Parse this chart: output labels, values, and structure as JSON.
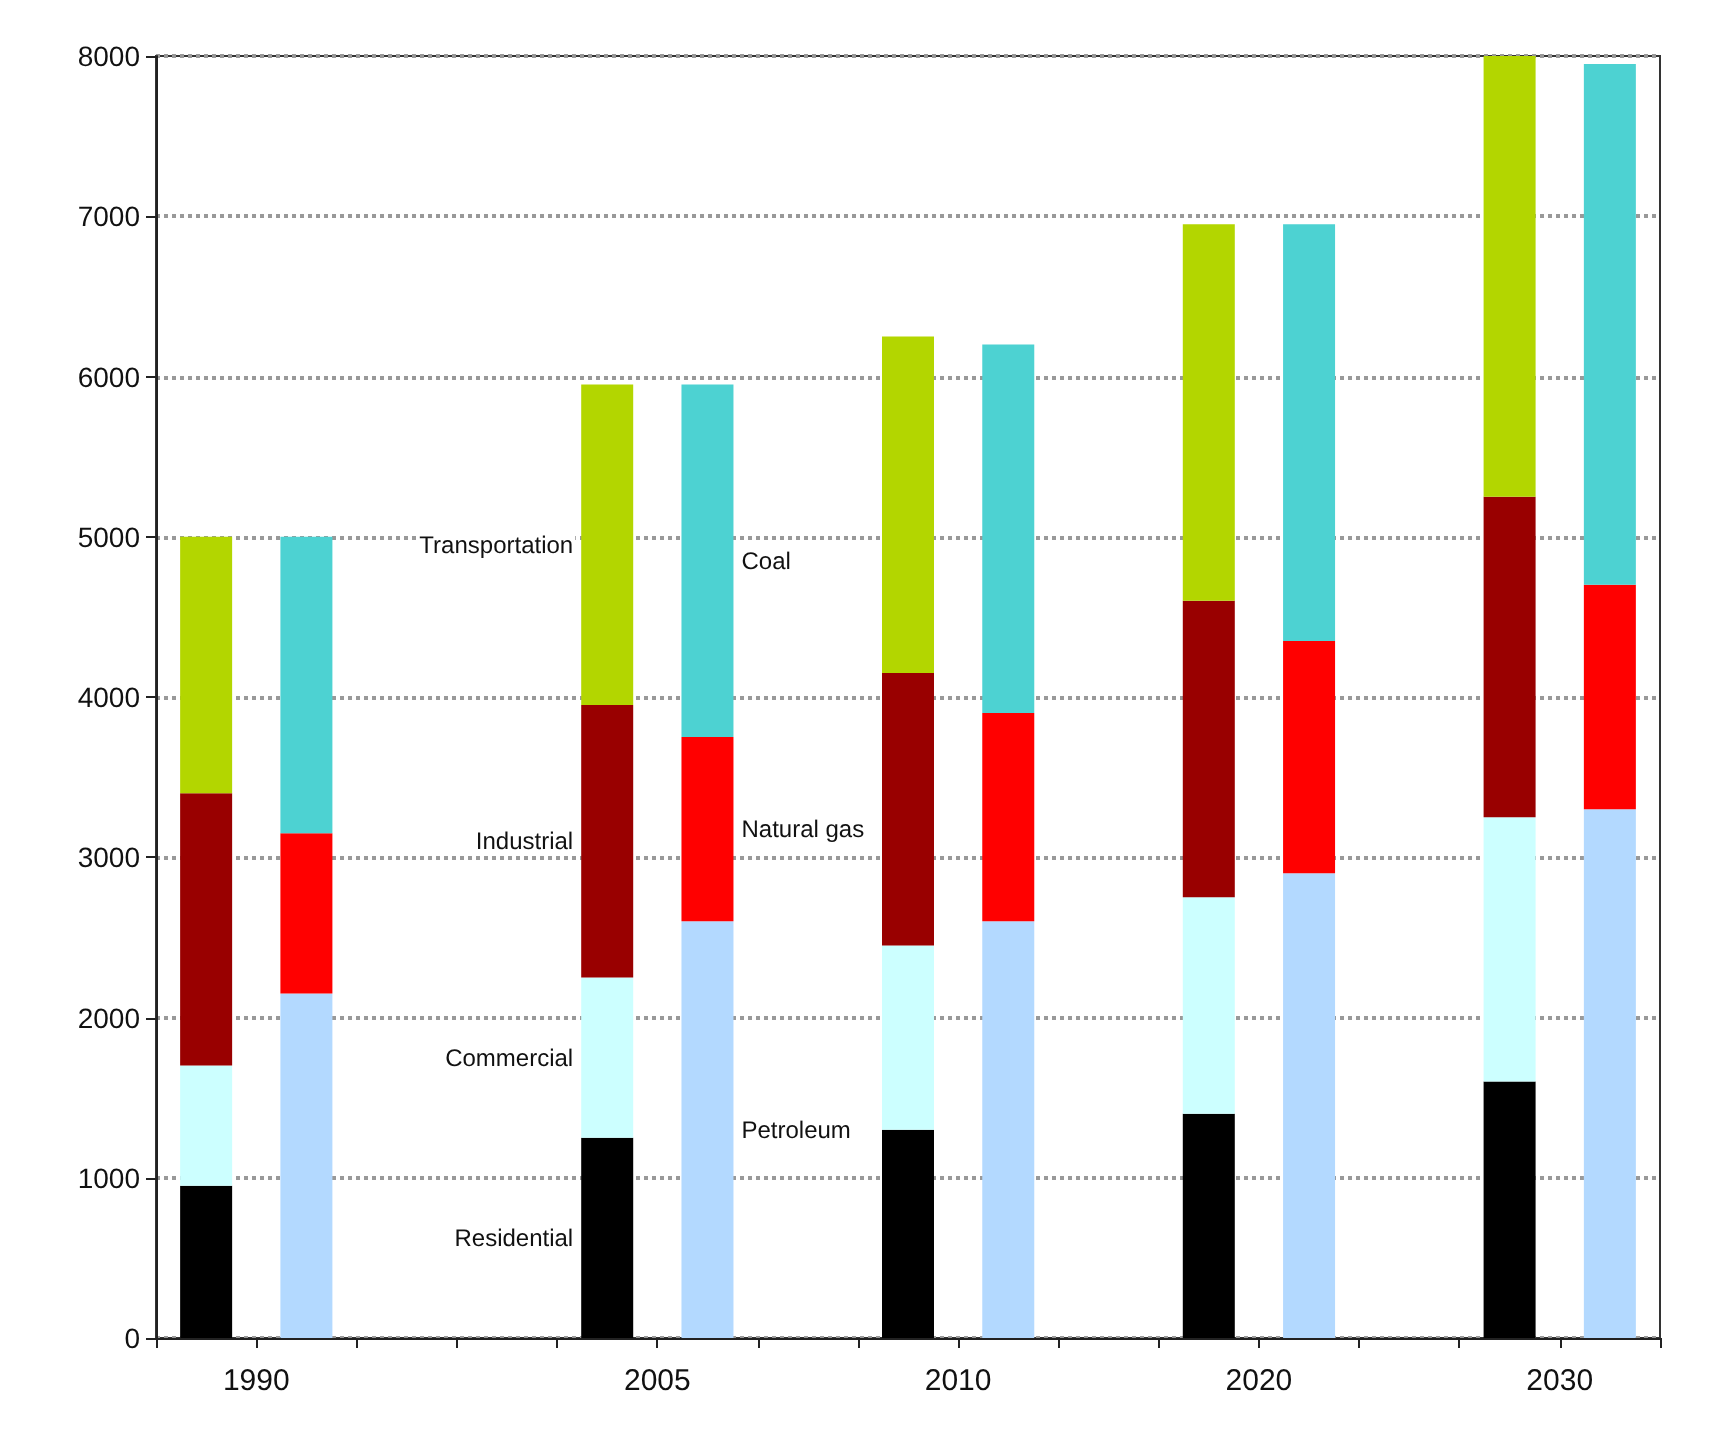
{
  "chart_data": {
    "type": "bar",
    "stacked": true,
    "categories": [
      "1990",
      null,
      null,
      null,
      "2005",
      null,
      null,
      "2010",
      null,
      null,
      "2020",
      null,
      null,
      "2030",
      null
    ],
    "series": [
      {
        "name": "Residential",
        "color": "#000000",
        "values": [
          950,
          null,
          null,
          null,
          1250,
          null,
          null,
          1300,
          null,
          null,
          1400,
          null,
          null,
          1600,
          null
        ]
      },
      {
        "name": "Commercial",
        "color": "#ccffff",
        "values": [
          750,
          null,
          null,
          null,
          1000,
          null,
          null,
          1150,
          null,
          null,
          1350,
          null,
          null,
          1650,
          null
        ]
      },
      {
        "name": "Industrial",
        "color": "#990000",
        "values": [
          1700,
          null,
          null,
          null,
          1700,
          null,
          null,
          1700,
          null,
          null,
          1850,
          null,
          null,
          2000,
          null
        ]
      },
      {
        "name": "Transportation",
        "color": "#b3d600",
        "values": [
          1600,
          null,
          null,
          null,
          2000,
          null,
          null,
          2100,
          null,
          null,
          2350,
          null,
          null,
          2750,
          null
        ]
      },
      {
        "name": "Petroleum",
        "color": "#b3d9ff",
        "values": [
          null,
          2150,
          null,
          null,
          null,
          2600,
          null,
          null,
          2600,
          null,
          null,
          2900,
          null,
          null,
          3300
        ]
      },
      {
        "name": "Natural gas",
        "color": "#ff0000",
        "values": [
          null,
          1000,
          null,
          null,
          null,
          1150,
          null,
          null,
          1300,
          null,
          null,
          1450,
          null,
          null,
          1400
        ]
      },
      {
        "name": "Coal",
        "color": "#4dd2d2",
        "values": [
          null,
          1850,
          null,
          null,
          null,
          2200,
          null,
          null,
          2300,
          null,
          null,
          2600,
          null,
          null,
          3250
        ]
      }
    ],
    "ylim": [
      0,
      8000
    ],
    "yticks": [
      0,
      1000,
      2000,
      3000,
      4000,
      5000,
      6000,
      7000,
      8000
    ],
    "grid": "y",
    "legend": false
  }
}
